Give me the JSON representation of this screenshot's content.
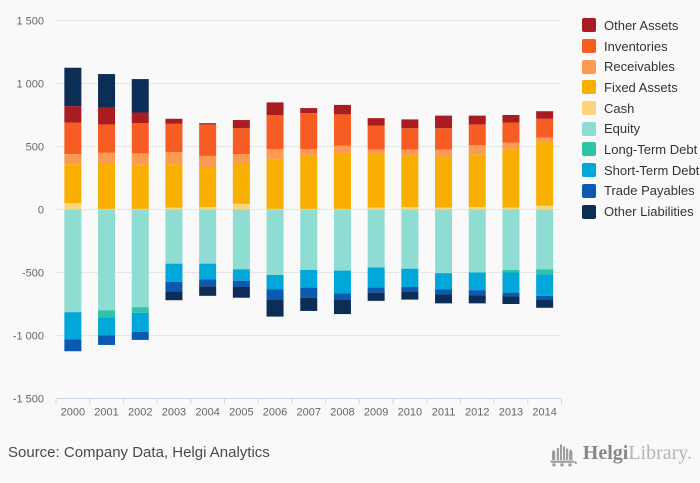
{
  "chart_data": {
    "type": "bar",
    "stacked": true,
    "title": "",
    "categories": [
      "2000",
      "2001",
      "2002",
      "2003",
      "2004",
      "2005",
      "2006",
      "2007",
      "2008",
      "2009",
      "2010",
      "2011",
      "2012",
      "2013",
      "2014"
    ],
    "series": [
      {
        "name": "Other Assets",
        "color": "#a81c22",
        "values": [
          130,
          135,
          85,
          40,
          10,
          65,
          100,
          40,
          75,
          60,
          70,
          100,
          70,
          60,
          60
        ]
      },
      {
        "name": "Inventories",
        "color": "#f75d22",
        "values": [
          250,
          225,
          240,
          225,
          250,
          205,
          270,
          285,
          250,
          190,
          170,
          170,
          165,
          160,
          150
        ]
      },
      {
        "name": "Receivables",
        "color": "#fb9a52",
        "values": [
          80,
          85,
          90,
          95,
          95,
          75,
          80,
          50,
          60,
          35,
          45,
          55,
          75,
          55,
          35
        ]
      },
      {
        "name": "Fixed Assets",
        "color": "#f9af00",
        "values": [
          310,
          360,
          350,
          345,
          310,
          320,
          395,
          425,
          440,
          425,
          410,
          405,
          415,
          460,
          505
        ]
      },
      {
        "name": "Cash",
        "color": "#fbd47e",
        "values": [
          50,
          5,
          5,
          15,
          20,
          45,
          5,
          5,
          5,
          15,
          20,
          15,
          20,
          15,
          30
        ]
      },
      {
        "name": "Equity",
        "color": "#8fdcd3",
        "values": [
          -815,
          -800,
          -775,
          -430,
          -430,
          -475,
          -520,
          -480,
          -485,
          -460,
          -470,
          -505,
          -500,
          -480,
          -475
        ]
      },
      {
        "name": "Long-Term Debt",
        "color": "#2fc3a7",
        "values": [
          0,
          -55,
          -45,
          0,
          0,
          0,
          0,
          0,
          0,
          0,
          0,
          0,
          0,
          -20,
          -40
        ]
      },
      {
        "name": "Short-Term Debt",
        "color": "#00a7d8",
        "values": [
          -215,
          -145,
          -150,
          -145,
          -125,
          -90,
          -115,
          -140,
          -180,
          -160,
          -145,
          -130,
          -140,
          -160,
          -170
        ]
      },
      {
        "name": "Trade Payables",
        "color": "#0b5ab0",
        "values": [
          -95,
          -75,
          -65,
          -75,
          -55,
          -50,
          -80,
          -80,
          -50,
          -40,
          -40,
          -40,
          -40,
          -30,
          -30
        ]
      },
      {
        "name": "Other Liabilities",
        "color": "#0c2d55",
        "values": [
          305,
          265,
          265,
          -70,
          -75,
          -85,
          -135,
          -105,
          -115,
          -65,
          -60,
          -70,
          -65,
          -60,
          -65
        ]
      }
    ],
    "y_axis": {
      "min": -1500,
      "max": 1500,
      "tick_step": 500,
      "tick_labels": [
        "1 500",
        "1 000",
        "500",
        "0",
        "-500",
        "-1 000",
        "-1 500"
      ]
    },
    "x_axis_labels": [
      "2000",
      "2001",
      "2002",
      "2003",
      "2004",
      "2005",
      "2006",
      "2007",
      "2008",
      "2009",
      "2010",
      "2011",
      "2012",
      "2013",
      "2014"
    ],
    "legend_position": "top-right",
    "grid": true
  },
  "footer": {
    "source": "Source: Company Data, Helgi Analytics",
    "logo_primary": "Helgi",
    "logo_secondary": "Library."
  },
  "style": {
    "background": "#f9f9f9",
    "gridline_color": "#e6e6e6",
    "axis_line_color": "#ccd6eb",
    "axis_label_color": "#666666",
    "legend_text_color": "#333333"
  }
}
